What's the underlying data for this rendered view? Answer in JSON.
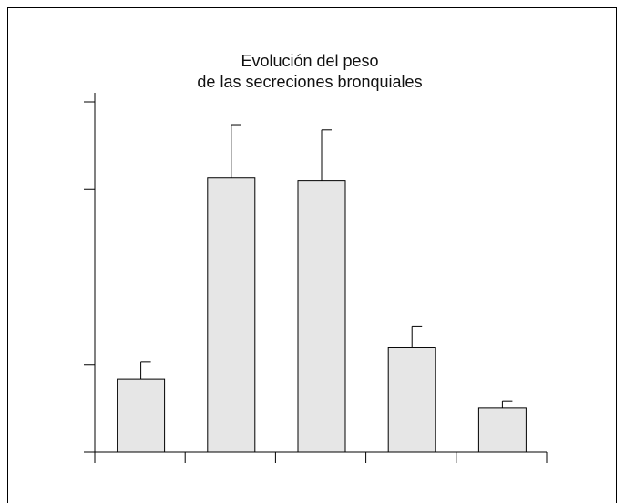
{
  "chart_data": {
    "type": "bar",
    "title": [
      "Evolución del peso",
      "de las secreciones bronquiales"
    ],
    "categories": [
      "",
      "",
      "",
      "",
      ""
    ],
    "values": [
      0.83,
      3.13,
      3.1,
      1.19,
      0.5
    ],
    "error_upper": [
      1.03,
      3.74,
      3.68,
      1.44,
      0.58
    ],
    "ylim": [
      0,
      4
    ],
    "yticks": [
      0,
      1,
      2,
      3,
      4
    ],
    "xlabel": "",
    "ylabel": "",
    "grid": false,
    "colors": {
      "bar_fill": "#e6e6e6",
      "stroke": "#000000"
    }
  }
}
